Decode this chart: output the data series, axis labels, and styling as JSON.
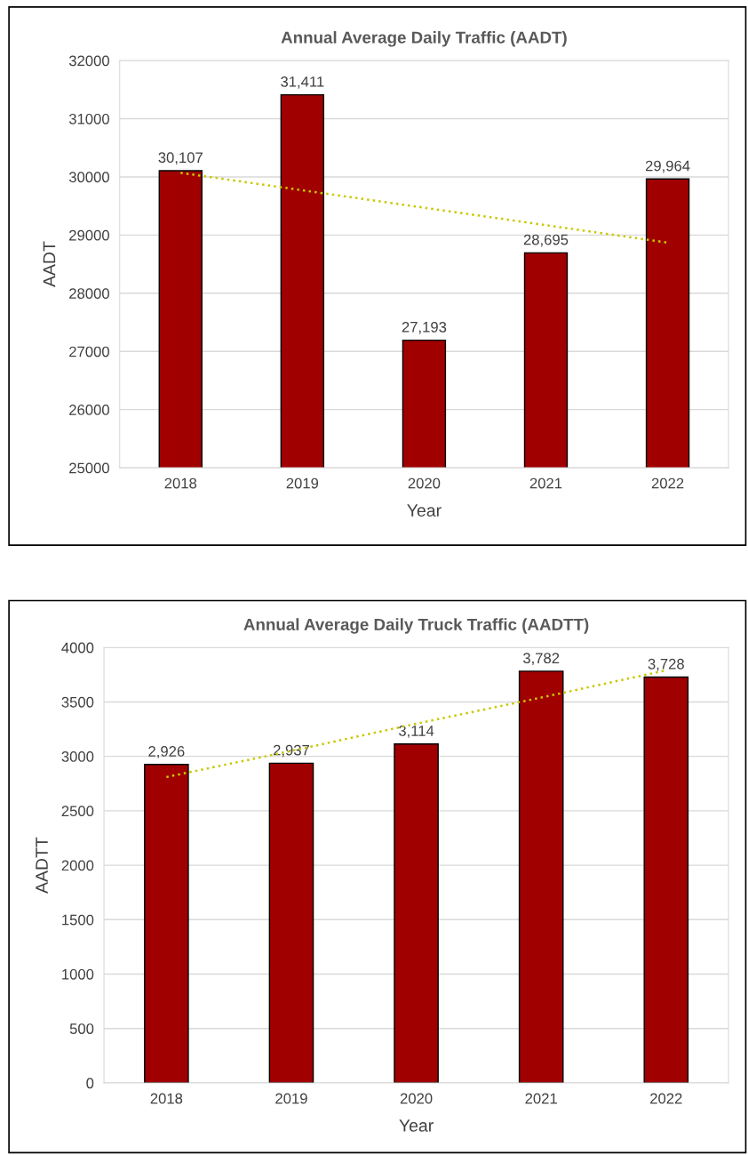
{
  "chart_data": [
    {
      "type": "bar",
      "title": "Annual Average Daily Traffic (AADT)",
      "xlabel": "Year",
      "ylabel": "AADT",
      "categories": [
        "2018",
        "2019",
        "2020",
        "2021",
        "2022"
      ],
      "series": [
        {
          "color": "#a00000",
          "values": [
            30107,
            31411,
            27193,
            28695,
            29964
          ],
          "value_labels": [
            "30,107",
            "31,411",
            "27,193",
            "28,695",
            "29,964"
          ]
        },
        {
          "type": "line",
          "color": "#c8c800",
          "line_style": "dotted",
          "values": [
            30070,
            29770,
            29470,
            29170,
            28870
          ]
        }
      ],
      "ylim": [
        25000,
        32000
      ],
      "yticks": [
        25000,
        26000,
        27000,
        28000,
        29000,
        30000,
        31000,
        32000
      ],
      "grid": "y",
      "legend": false
    },
    {
      "type": "bar",
      "title": "Annual Average Daily Truck Traffic (AADTT)",
      "xlabel": "Year",
      "ylabel": "AADTT",
      "categories": [
        "2018",
        "2019",
        "2020",
        "2021",
        "2022"
      ],
      "series": [
        {
          "color": "#a00000",
          "values": [
            2926,
            2937,
            3114,
            3782,
            3728
          ],
          "value_labels": [
            "2,926",
            "2,937",
            "3,114",
            "3,782",
            "3,728"
          ]
        },
        {
          "type": "line",
          "color": "#c8c800",
          "line_style": "dotted",
          "values": [
            2810,
            3050,
            3300,
            3540,
            3790
          ]
        }
      ],
      "ylim": [
        0,
        4000
      ],
      "yticks": [
        0,
        500,
        1000,
        1500,
        2000,
        2500,
        3000,
        3500,
        4000
      ],
      "grid": "y",
      "legend": false
    }
  ]
}
